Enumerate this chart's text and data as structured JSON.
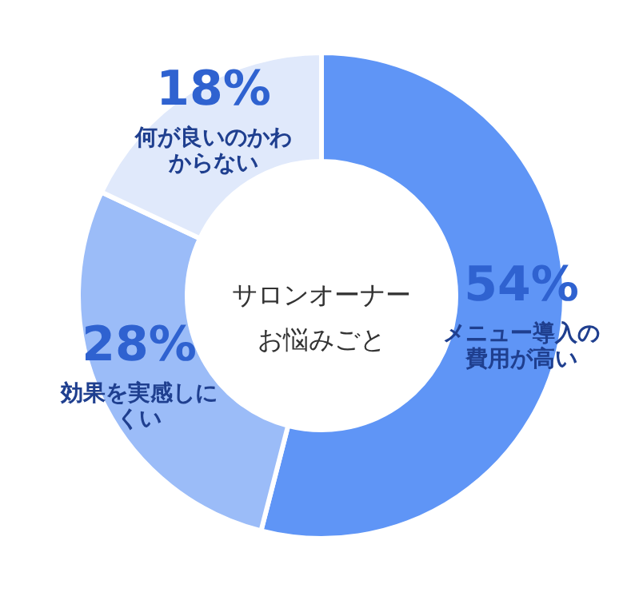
{
  "chart_data": {
    "type": "donut",
    "title": "サロンオーナーお悩みごと",
    "categories": [
      "メニュー導入の費用が高い",
      "効果を実感しにくい",
      "何が良いのかわからない"
    ],
    "values": [
      54,
      28,
      18
    ],
    "colors": [
      "#5f95f6",
      "#9bbcf8",
      "#e0e9fb"
    ],
    "value_labels": [
      "54%",
      "28%",
      "18%"
    ]
  }
}
